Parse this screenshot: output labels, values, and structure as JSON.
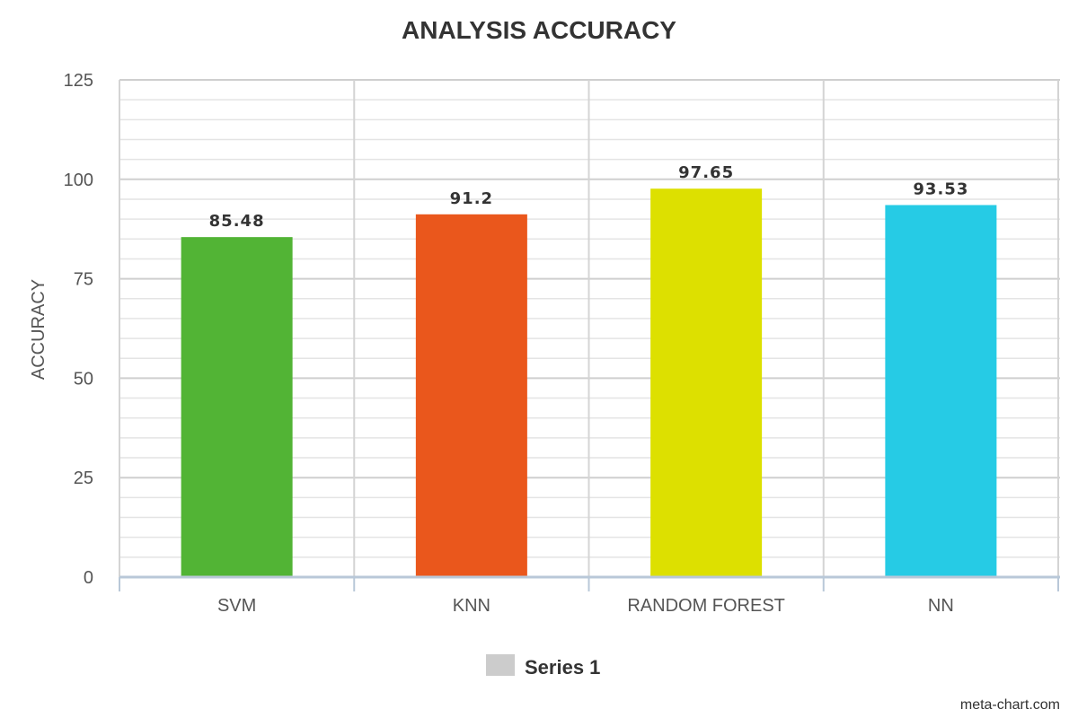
{
  "chart_data": {
    "type": "bar",
    "title": "ANALYSIS ACCURACY",
    "xlabel": "",
    "ylabel": "ACCURACY",
    "categories": [
      "SVM",
      "KNN",
      "RANDOM FOREST",
      "NN"
    ],
    "series": [
      {
        "name": "Series 1",
        "values": [
          85.48,
          91.2,
          97.65,
          93.53
        ]
      }
    ],
    "data_labels": [
      "85.48",
      "91.2",
      "97.65",
      "93.53"
    ],
    "bar_colors": [
      "#52b435",
      "#ea571c",
      "#dde000",
      "#26cbe5"
    ],
    "ylim": [
      0,
      125
    ],
    "yticks": [
      0,
      25,
      50,
      75,
      100,
      125
    ],
    "grid": true,
    "legend": {
      "position": "bottom-center",
      "swatch_color": "#cccccc"
    }
  },
  "credit": "meta-chart.com"
}
